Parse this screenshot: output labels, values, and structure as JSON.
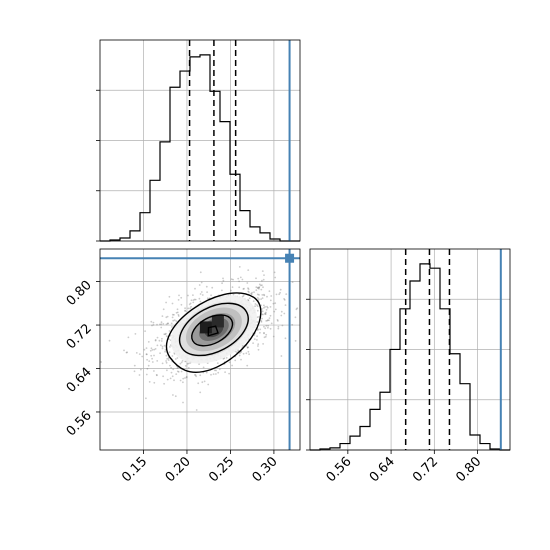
{
  "chart_data": {
    "type": "corner",
    "parameters": [
      {
        "marginal": {
          "type": "histogram",
          "xlim": [
            0.1,
            0.33
          ],
          "bin_edges": [
            0.1,
            0.1115,
            0.123,
            0.1345,
            0.146,
            0.1575,
            0.169,
            0.1805,
            0.192,
            0.2035,
            0.215,
            0.2265,
            0.238,
            0.2495,
            0.261,
            0.2725,
            0.284,
            0.2955,
            0.307,
            0.3185,
            0.33
          ],
          "counts": [
            0.0,
            0.005,
            0.015,
            0.05,
            0.14,
            0.3,
            0.49,
            0.76,
            0.84,
            0.91,
            0.92,
            0.74,
            0.59,
            0.33,
            0.15,
            0.07,
            0.04,
            0.01,
            0.0,
            0.0
          ],
          "quantiles": [
            0.203,
            0.231,
            0.256
          ],
          "truth": 0.318
        }
      },
      {
        "marginal": {
          "type": "histogram",
          "xlim": [
            0.49,
            0.86
          ],
          "bin_edges": [
            0.49,
            0.5085,
            0.527,
            0.5455,
            0.564,
            0.5825,
            0.601,
            0.6195,
            0.638,
            0.6565,
            0.675,
            0.6935,
            0.712,
            0.7305,
            0.749,
            0.7675,
            0.786,
            0.8045,
            0.823,
            0.8415,
            0.86
          ],
          "counts": [
            0.0,
            0.005,
            0.01,
            0.03,
            0.065,
            0.11,
            0.19,
            0.27,
            0.47,
            0.66,
            0.79,
            0.87,
            0.85,
            0.66,
            0.45,
            0.31,
            0.07,
            0.03,
            0.005,
            0.0
          ],
          "quantiles": [
            0.667,
            0.711,
            0.748
          ],
          "truth": 0.843
        }
      }
    ],
    "joint": {
      "type": "2d-density-contour",
      "xlim": [
        0.1,
        0.33
      ],
      "ylim": [
        0.49,
        0.86
      ],
      "xticks": [
        "0.15",
        "0.20",
        "0.25",
        "0.30"
      ],
      "yticks": [
        "0.56",
        "0.64",
        "0.72",
        "0.80"
      ],
      "center": [
        0.231,
        0.712
      ],
      "truth": [
        0.318,
        0.843
      ],
      "grid": true
    },
    "marginal_x_ticks": [
      "0.56",
      "0.64",
      "0.72",
      "0.80"
    ],
    "histogram_color": "#000000",
    "quantile_color": "#000000",
    "truth_color": "#4682b4",
    "grid_color": "#b0b0b0"
  }
}
